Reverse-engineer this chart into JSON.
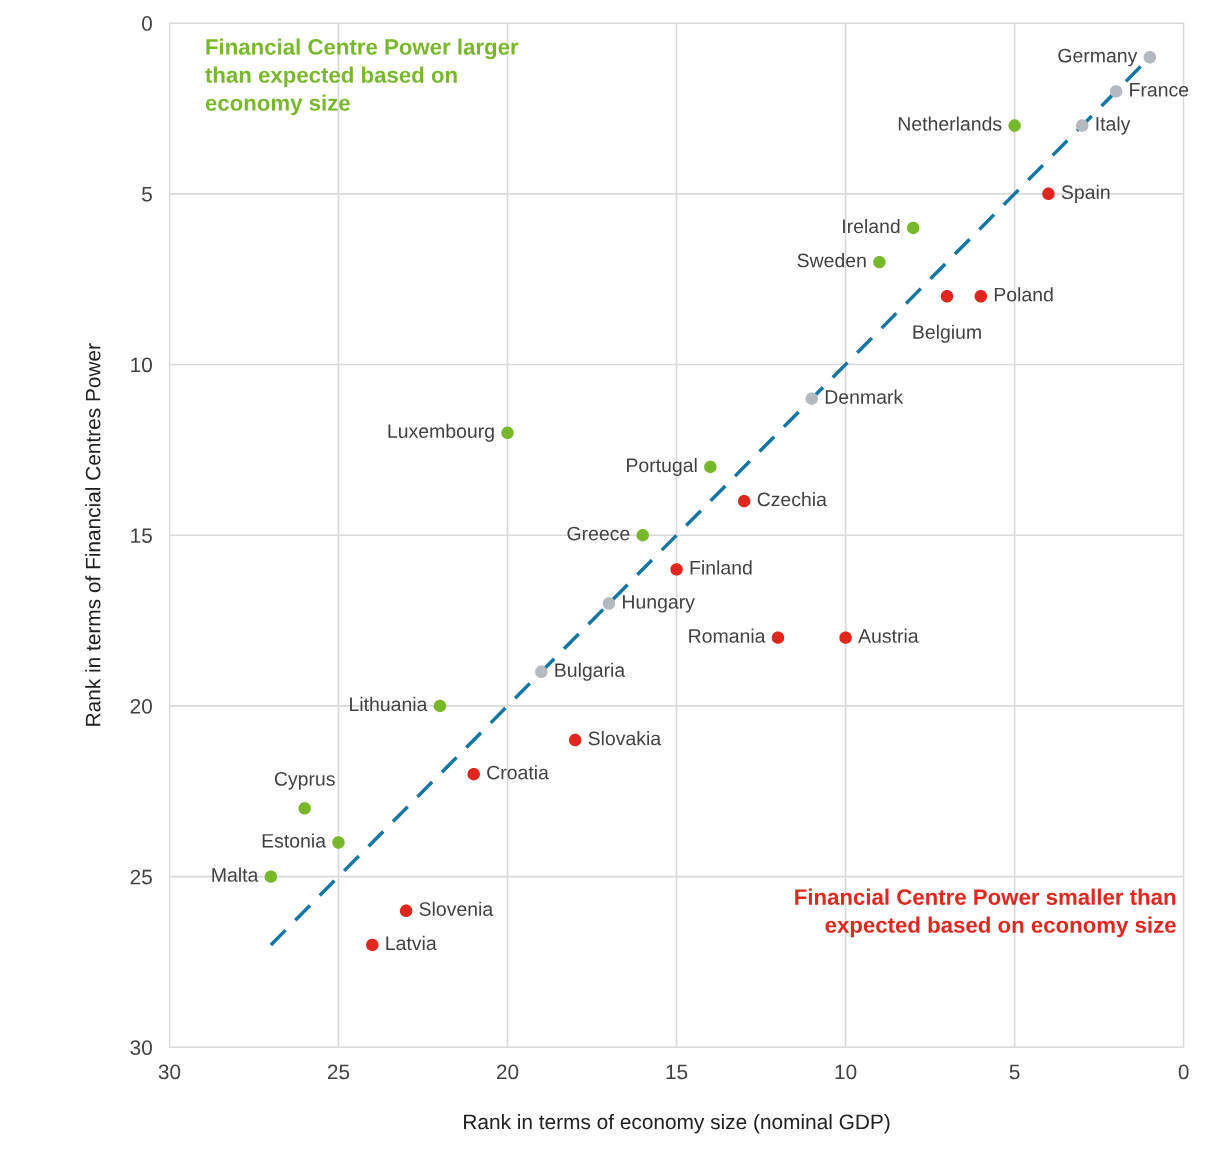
{
  "chart_data": {
    "type": "scatter",
    "xlabel": "Rank in terms of economy size (nominal GDP)",
    "ylabel": "Rank in terms of Financial Centres Power",
    "xlim": [
      30,
      0
    ],
    "ylim": [
      30,
      0
    ],
    "xticks": [
      30,
      25,
      20,
      15,
      10,
      5,
      0
    ],
    "yticks": [
      0,
      5,
      10,
      15,
      20,
      25,
      30
    ],
    "grid": true,
    "marker": "circle",
    "series": [
      {
        "color": "#77b82a",
        "x": [
          5,
          8,
          9,
          20,
          14,
          16,
          22,
          26,
          25,
          27
        ],
        "values": [
          3,
          6,
          7,
          12,
          13,
          15,
          20,
          23,
          24,
          25
        ]
      },
      {
        "color": "#e0261d",
        "x": [
          4,
          6,
          7,
          13,
          15,
          12,
          10,
          18,
          21,
          23,
          24
        ],
        "values": [
          5,
          8,
          8,
          14,
          16,
          18,
          18,
          21,
          22,
          26,
          27
        ]
      },
      {
        "color": "#b4b8bf",
        "x": [
          1,
          2,
          3,
          11,
          17,
          19
        ],
        "values": [
          1,
          2,
          3,
          11,
          17,
          19
        ]
      },
      {
        "type": "line",
        "color": "#1176a6",
        "line_style": "dashed",
        "marker": "none",
        "x": [
          27,
          1
        ],
        "values": [
          27,
          1
        ]
      }
    ],
    "annotations": [
      "Financial Centre Power larger than expected based on economy size",
      "Financial Centre Power smaller than expected based on economy size",
      {
        "text": "Germany",
        "x": 1,
        "y": 1
      },
      {
        "text": "France",
        "x": 2,
        "y": 2
      },
      {
        "text": "Italy",
        "x": 3,
        "y": 3
      },
      {
        "text": "Netherlands",
        "x": 5,
        "y": 3
      },
      {
        "text": "Spain",
        "x": 4,
        "y": 5
      },
      {
        "text": "Ireland",
        "x": 8,
        "y": 6
      },
      {
        "text": "Sweden",
        "x": 9,
        "y": 7
      },
      {
        "text": "Poland",
        "x": 6,
        "y": 8
      },
      {
        "text": "Belgium",
        "x": 7,
        "y": 8
      },
      {
        "text": "Denmark",
        "x": 11,
        "y": 11
      },
      {
        "text": "Luxembourg",
        "x": 20,
        "y": 12
      },
      {
        "text": "Portugal",
        "x": 14,
        "y": 13
      },
      {
        "text": "Czechia",
        "x": 13,
        "y": 14
      },
      {
        "text": "Greece",
        "x": 16,
        "y": 15
      },
      {
        "text": "Finland",
        "x": 15,
        "y": 16
      },
      {
        "text": "Hungary",
        "x": 17,
        "y": 17
      },
      {
        "text": "Romania",
        "x": 12,
        "y": 18
      },
      {
        "text": "Austria",
        "x": 10,
        "y": 18
      },
      {
        "text": "Bulgaria",
        "x": 19,
        "y": 19
      },
      {
        "text": "Lithuania",
        "x": 22,
        "y": 20
      },
      {
        "text": "Slovakia",
        "x": 18,
        "y": 21
      },
      {
        "text": "Croatia",
        "x": 21,
        "y": 22
      },
      {
        "text": "Cyprus",
        "x": 26,
        "y": 23
      },
      {
        "text": "Estonia",
        "x": 25,
        "y": 24
      },
      {
        "text": "Malta",
        "x": 27,
        "y": 25
      },
      {
        "text": "Slovenia",
        "x": 23,
        "y": 26
      },
      {
        "text": "Latvia",
        "x": 24,
        "y": 27
      }
    ]
  }
}
